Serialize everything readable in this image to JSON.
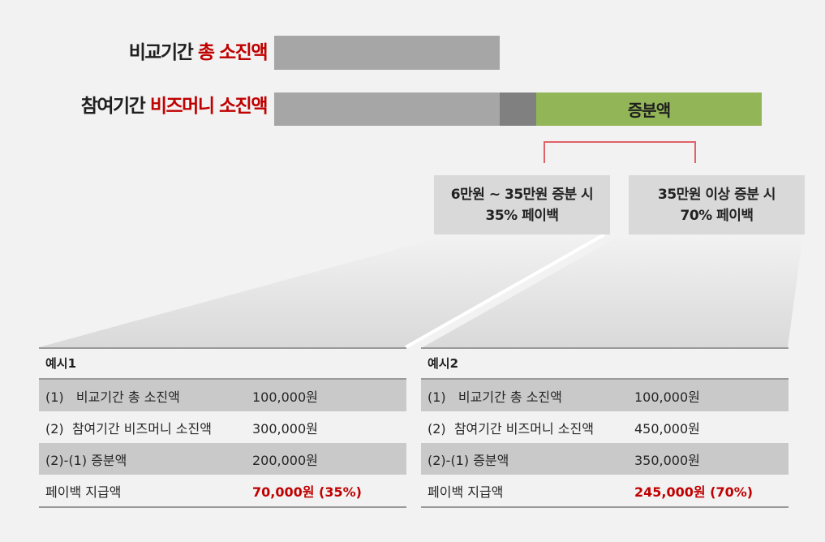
{
  "top_chart": {
    "compare_label_black": "비교기간",
    "compare_label_red": "총 소진액",
    "participate_label_black": "참여기간",
    "participate_label_red": "비즈머니 소진액",
    "increase_label": "증분액"
  },
  "tiers": [
    {
      "line1": "6만원 ~ 35만원 증분 시",
      "line2": "35% 페이백"
    },
    {
      "line1": "35만원 이상 증분 시",
      "line2": "70% 페이백"
    }
  ],
  "examples": [
    {
      "title": "예시1",
      "rows": [
        {
          "label": "(1)   비교기간 총 소진액",
          "value": "100,000원"
        },
        {
          "label": "(2)  참여기간 비즈머니 소진액",
          "value": "300,000원"
        },
        {
          "label": "(2)-(1) 증분액",
          "value": "200,000원"
        },
        {
          "label": "페이백 지급액",
          "value": "70,000원 (35%)"
        }
      ]
    },
    {
      "title": "예시2",
      "rows": [
        {
          "label": "(1)   비교기간 총 소진액",
          "value": "100,000원"
        },
        {
          "label": "(2)  참여기간 비즈머니 소진액",
          "value": "450,000원"
        },
        {
          "label": "(2)-(1) 증분액",
          "value": "350,000원"
        },
        {
          "label": "페이백 지급액",
          "value": "245,000원 (70%)"
        }
      ]
    }
  ],
  "colors": {
    "accent_red": "#c00000",
    "increase_green": "#92b557",
    "bar_gray": "#a6a6a6",
    "bar_dark_gray": "#808080",
    "bracket_pink": "#e0636a"
  }
}
